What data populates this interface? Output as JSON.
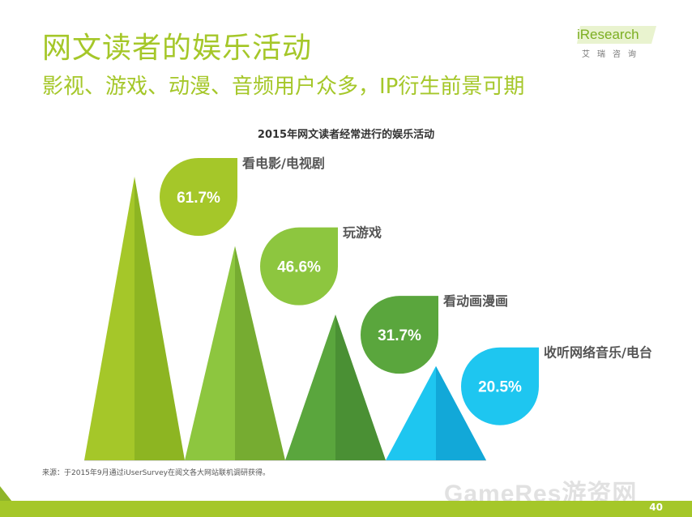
{
  "header": {
    "title": "网文读者的娱乐活动",
    "subtitle": "影视、游戏、动漫、音频用户众多，IP衍生前景可期"
  },
  "logo": {
    "main": "iResearch",
    "sub": "艾瑞咨询",
    "icon": "iresearch-logo"
  },
  "chart_data": {
    "type": "bar",
    "title": "2015年网文读者经常进行的娱乐活动",
    "categories": [
      "看电影/电视剧",
      "玩游戏",
      "看动画漫画",
      "收听网络音乐/电台"
    ],
    "values": [
      61.7,
      46.6,
      31.7,
      20.5
    ],
    "value_labels": [
      "61.7%",
      "46.6%",
      "31.7%",
      "20.5%"
    ],
    "unit": "%",
    "colors": [
      "#a5c729",
      "#8dc63f",
      "#5aa63d",
      "#1ec6f0"
    ],
    "colors_dark": [
      "#8db522",
      "#76ac31",
      "#4a9034",
      "#12a8d8"
    ]
  },
  "footer": {
    "source": "来源：于2015年9月通过iUserSurvey在阅文各大网站联机调研获得。",
    "page_number": "40",
    "watermark": "GameRes游资网"
  }
}
